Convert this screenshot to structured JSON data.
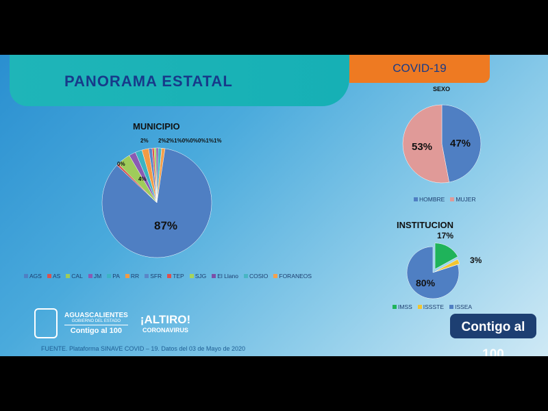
{
  "header": {
    "title": "PANORAMA ESTATAL",
    "tag": "COVID-19"
  },
  "colors": {
    "title_bar": "#1fb5b8",
    "tag": "#ee7a22",
    "title_text": "#173a8a"
  },
  "chart_data": [
    {
      "type": "pie",
      "title": "MUNICIPIO",
      "categories": [
        "AGS",
        "AS",
        "CAL",
        "JM",
        "PA",
        "RR",
        "SFR",
        "TEP",
        "SJG",
        "El Llano",
        "COSIO",
        "FORANEOS"
      ],
      "values": [
        87,
        0,
        4,
        2,
        2,
        2,
        1,
        0,
        0,
        0,
        1,
        1
      ],
      "labels": [
        "87%",
        "0%",
        "4%",
        "2%",
        "2%2%1%0%0%0%1%1%"
      ],
      "colors": [
        "#4f7fc3",
        "#d9534f",
        "#9fcc5a",
        "#8a5bb3",
        "#3bb3c3",
        "#f39b45",
        "#5a86c7",
        "#e0504d",
        "#a6d45c",
        "#7d4fa8",
        "#48b6c4",
        "#f5a04c"
      ],
      "legend": "bottom"
    },
    {
      "type": "pie",
      "title": "SEXO",
      "categories": [
        "HOMBRE",
        "MUJER"
      ],
      "values": [
        47,
        53
      ],
      "colors": [
        "#4f7fc3",
        "#e09a98"
      ],
      "legend": "bottom"
    },
    {
      "type": "pie",
      "title": "INSTITUCION",
      "categories": [
        "IMSS",
        "ISSSTE",
        "ISSEA"
      ],
      "values": [
        17,
        3,
        80
      ],
      "colors": [
        "#1fb35a",
        "#f2c530",
        "#4f7fc3"
      ],
      "legend": "bottom"
    }
  ],
  "logos": {
    "gov_name": "AGUASCALIENTES",
    "gov_sub": "GOBIERNO DEL ESTADO",
    "slogan": "Contigo al 100",
    "campaign": "¡ALTIRO!",
    "campaign_sub": "CORONAVIRUS",
    "badge": "Contigo al 100"
  },
  "footer": {
    "source": "FUENTE. Plataforma SINAVE COVID – 19. Datos del 03 de Mayo de 2020"
  }
}
